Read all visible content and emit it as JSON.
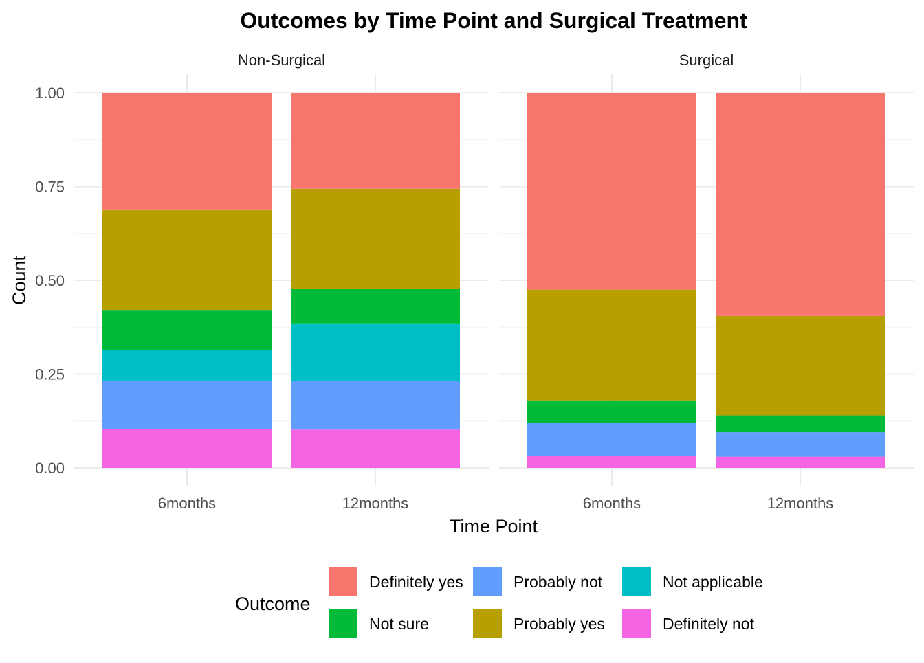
{
  "chart_data": {
    "type": "bar",
    "stacked": true,
    "normalized": true,
    "title": "Outcomes by Time Point and Surgical Treatment",
    "xlabel": "Time Point",
    "ylabel": "Count",
    "ylim": [
      0,
      1
    ],
    "yticks": [
      "0.00",
      "0.25",
      "0.50",
      "0.75",
      "1.00"
    ],
    "ytick_values": [
      0,
      0.25,
      0.5,
      0.75,
      1.0
    ],
    "grid": true,
    "categories": [
      "6months",
      "12months"
    ],
    "legend": {
      "title": "Outcome",
      "placement": "bottom",
      "entries": [
        {
          "label": "Definitely yes",
          "color": "#F8766D"
        },
        {
          "label": "Not sure",
          "color": "#00BA38"
        },
        {
          "label": "Probably not",
          "color": "#619CFF"
        },
        {
          "label": "Probably yes",
          "color": "#B79F00"
        },
        {
          "label": "Not applicable",
          "color": "#00BFC4"
        },
        {
          "label": "Definitely not",
          "color": "#F564E3"
        }
      ]
    },
    "stack_order_bottom_to_top": [
      "Definitely not",
      "Probably not",
      "Not applicable",
      "Not sure",
      "Probably yes",
      "Definitely yes"
    ],
    "colors": {
      "Definitely yes": "#F8766D",
      "Probably yes": "#B79F00",
      "Not sure": "#00BA38",
      "Not applicable": "#00BFC4",
      "Probably not": "#619CFF",
      "Definitely not": "#F564E3"
    },
    "panels": [
      {
        "name": "Non-Surgical",
        "bars": [
          {
            "category": "6months",
            "segments": {
              "Definitely not": 0.103,
              "Probably not": 0.129,
              "Not applicable": 0.083,
              "Not sure": 0.106,
              "Probably yes": 0.268,
              "Definitely yes": 0.311
            }
          },
          {
            "category": "12months",
            "segments": {
              "Definitely not": 0.102,
              "Probably not": 0.13,
              "Not applicable": 0.153,
              "Not sure": 0.092,
              "Probably yes": 0.267,
              "Definitely yes": 0.256
            }
          }
        ]
      },
      {
        "name": "Surgical",
        "bars": [
          {
            "category": "6months",
            "segments": {
              "Definitely not": 0.032,
              "Probably not": 0.088,
              "Not applicable": 0.0,
              "Not sure": 0.06,
              "Probably yes": 0.295,
              "Definitely yes": 0.525
            }
          },
          {
            "category": "12months",
            "segments": {
              "Definitely not": 0.03,
              "Probably not": 0.065,
              "Not applicable": 0.0,
              "Not sure": 0.045,
              "Probably yes": 0.265,
              "Definitely yes": 0.595
            }
          }
        ]
      }
    ]
  }
}
